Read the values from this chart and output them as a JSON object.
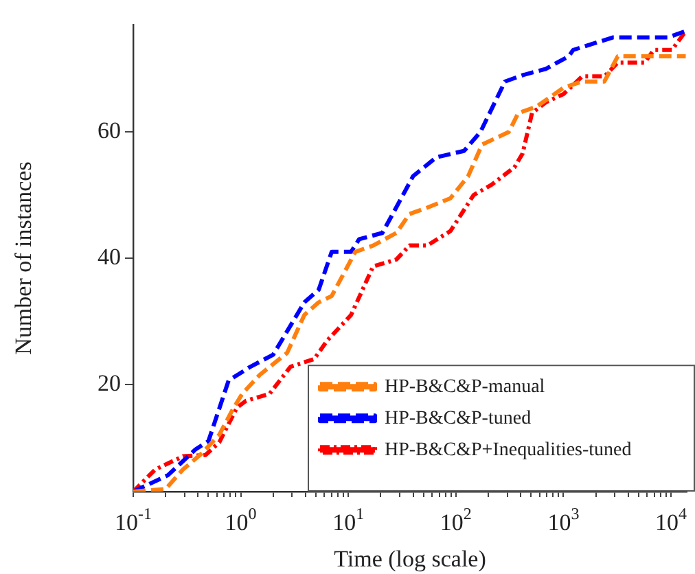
{
  "chart_data": {
    "type": "line",
    "xlabel": "Time (log scale)",
    "ylabel": "Number of instances",
    "log": "x",
    "legend": "bottom right",
    "grid": false,
    "xlim": [
      0.1,
      14000
    ],
    "ylim": [
      3,
      77
    ],
    "yticks": [
      20,
      40,
      60
    ],
    "xticks": [
      {
        "value": 0.1,
        "label": "10$^{-1}$"
      },
      {
        "value": 0.2,
        "label": null
      },
      {
        "value": 0.3,
        "label": null
      },
      {
        "value": 0.4,
        "label": null
      },
      {
        "value": 0.5,
        "label": null
      },
      {
        "value": 0.6,
        "label": null
      },
      {
        "value": 0.7,
        "label": null
      },
      {
        "value": 0.8,
        "label": null
      },
      {
        "value": 0.9,
        "label": null
      },
      {
        "value": 1,
        "label": "10$^{0}$"
      },
      {
        "value": 2,
        "label": null
      },
      {
        "value": 3,
        "label": null
      },
      {
        "value": 4,
        "label": null
      },
      {
        "value": 5,
        "label": null
      },
      {
        "value": 6,
        "label": null
      },
      {
        "value": 7,
        "label": null
      },
      {
        "value": 8,
        "label": null
      },
      {
        "value": 9,
        "label": null
      },
      {
        "value": 10,
        "label": "10$^{1}$"
      },
      {
        "value": 20,
        "label": null
      },
      {
        "value": 30,
        "label": null
      },
      {
        "value": 40,
        "label": null
      },
      {
        "value": 50,
        "label": null
      },
      {
        "value": 60,
        "label": null
      },
      {
        "value": 70,
        "label": null
      },
      {
        "value": 80,
        "label": null
      },
      {
        "value": 90,
        "label": null
      },
      {
        "value": 100,
        "label": "10$^{2}$"
      },
      {
        "value": 200,
        "label": null
      },
      {
        "value": 300,
        "label": null
      },
      {
        "value": 400,
        "label": null
      },
      {
        "value": 500,
        "label": null
      },
      {
        "value": 600,
        "label": null
      },
      {
        "value": 700,
        "label": null
      },
      {
        "value": 800,
        "label": null
      },
      {
        "value": 900,
        "label": null
      },
      {
        "value": 1000,
        "label": "10$^{3}$"
      },
      {
        "value": 2000,
        "label": null
      },
      {
        "value": 3000,
        "label": null
      },
      {
        "value": 4000,
        "label": null
      },
      {
        "value": 5000,
        "label": null
      },
      {
        "value": 6000,
        "label": null
      },
      {
        "value": 7000,
        "label": null
      },
      {
        "value": 8000,
        "label": null
      },
      {
        "value": 9000,
        "label": null
      },
      {
        "value": 10000,
        "label": "10$^{4}$"
      }
    ],
    "series": [
      {
        "name": "HP-B&C&P-manual",
        "color": "#ff7f0e",
        "line_style": "dashed",
        "x": [
          0.1,
          0.2,
          0.29,
          0.43,
          0.63,
          0.84,
          1.03,
          1.5,
          2.7,
          3.9,
          5.3,
          7,
          11.6,
          17,
          28,
          37,
          54,
          89,
          130,
          175,
          310,
          380,
          560,
          1000,
          1490,
          2400,
          3200,
          13700
        ],
        "values": [
          3,
          3.4,
          6.5,
          9,
          12,
          16,
          18.5,
          21.5,
          25,
          31,
          33,
          34,
          41,
          42,
          44,
          47,
          48,
          49.5,
          53,
          58,
          60,
          63,
          64,
          67,
          68,
          68,
          72,
          72
        ]
      },
      {
        "name": "HP-B&C&P-tuned",
        "color": "#0000ff",
        "line_style": "dashed",
        "x": [
          0.1,
          0.21,
          0.38,
          0.5,
          0.77,
          1.23,
          2,
          3.9,
          5.3,
          7,
          10.6,
          12.6,
          20.7,
          27.8,
          40,
          66,
          119,
          169,
          286,
          417,
          685,
          1120,
          1230,
          2900,
          9400,
          13700
        ],
        "values": [
          3,
          5.6,
          9.7,
          11,
          20.6,
          22.8,
          24.7,
          33,
          35,
          41,
          41,
          43,
          44,
          48,
          53,
          56,
          57,
          60,
          68,
          69,
          70,
          72,
          73,
          75,
          75,
          76
        ]
      },
      {
        "name": "HP-B&C&P+Inequalities-tuned",
        "color": "#ff0000",
        "line_style": "dashdot",
        "x": [
          0.1,
          0.16,
          0.29,
          0.47,
          0.63,
          0.92,
          1.12,
          1.85,
          2.9,
          4.8,
          6.4,
          10.6,
          17,
          28,
          37,
          54,
          89,
          146,
          213,
          350,
          417,
          510,
          685,
          1000,
          1490,
          2400,
          3200,
          5700,
          6900,
          10200,
          13700
        ],
        "values": [
          3,
          6.5,
          8.6,
          8.8,
          10.8,
          16.3,
          17.4,
          18.5,
          22.8,
          24,
          27,
          31,
          38.7,
          39.8,
          42,
          42,
          44.3,
          50,
          51.6,
          54.4,
          56.6,
          63,
          64.7,
          66,
          68.8,
          68.8,
          71,
          71,
          73,
          73,
          76
        ]
      }
    ]
  }
}
